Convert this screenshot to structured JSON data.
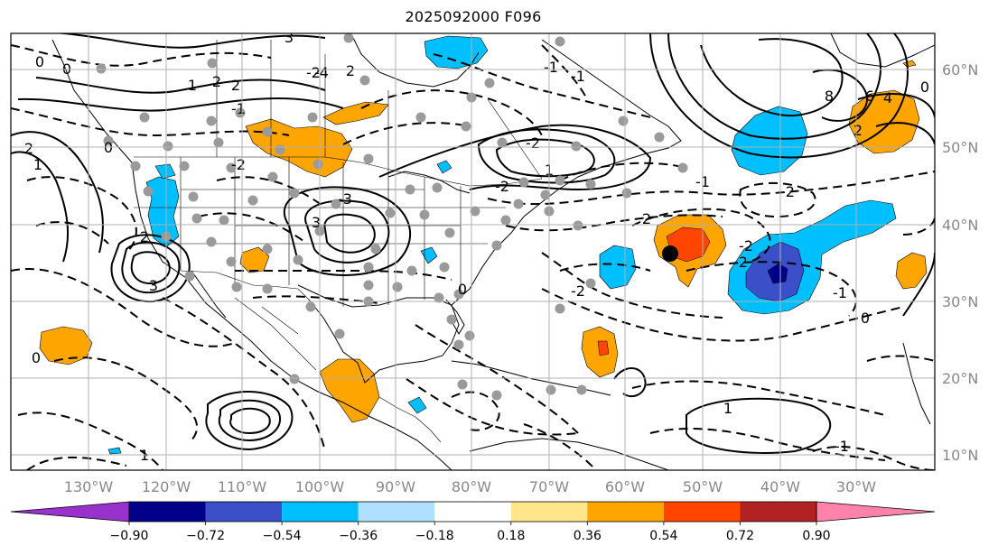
{
  "title": "2025092000 F096",
  "map": {
    "lon_labels": [
      "130°W",
      "120°W",
      "110°W",
      "100°W",
      "90°W",
      "80°W",
      "70°W",
      "60°W",
      "50°W",
      "40°W",
      "30°W"
    ],
    "lat_labels": [
      "60°N",
      "50°N",
      "40°N",
      "30°N",
      "20°N",
      "10°N"
    ],
    "contour_labels": [
      "0",
      "0",
      "1",
      "2",
      "2",
      "3",
      "-1",
      "-2",
      "-3",
      "-4",
      "2",
      "-2",
      "3",
      "2",
      "1",
      "0",
      "8",
      "6",
      "4",
      "2",
      "-1",
      "-2",
      "2",
      "-2",
      "0",
      "-2",
      "-1",
      "1",
      "-1",
      "-2",
      "0",
      "-1",
      "0",
      "3",
      "1",
      "-1",
      "0",
      "1",
      "-2",
      "-2",
      "2"
    ],
    "colors": {
      "strong_negative": "#3a4fc8",
      "mid_negative": "#00bfff",
      "positive": "#ffa500",
      "strong_positive": "#ff4500",
      "grid": "#b0b0b0",
      "axis_label": "#888888"
    }
  },
  "colorbar": {
    "ticks": [
      "−0.90",
      "−0.72",
      "−0.54",
      "−0.36",
      "−0.18",
      "0.18",
      "0.36",
      "0.54",
      "0.72",
      "0.90"
    ],
    "colors": [
      "#9932cc",
      "#00008b",
      "#3a4fc8",
      "#00bfff",
      "#b0e0ff",
      "#ffffff",
      "#ffe68a",
      "#ffa500",
      "#ff4500",
      "#b22222",
      "#ff82ab"
    ]
  }
}
